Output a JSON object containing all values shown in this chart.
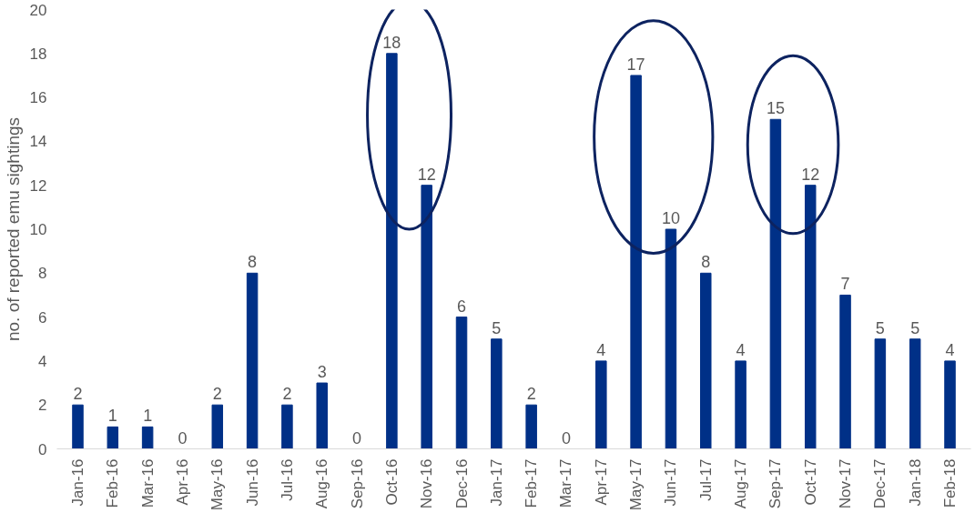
{
  "chart_data": {
    "type": "bar",
    "ylabel": "no. of reported emu sightings",
    "categories": [
      "Jan-16",
      "Feb-16",
      "Mar-16",
      "Apr-16",
      "May-16",
      "Jun-16",
      "Jul-16",
      "Aug-16",
      "Sep-16",
      "Oct-16",
      "Nov-16",
      "Dec-16",
      "Jan-17",
      "Feb-17",
      "Mar-17",
      "Apr-17",
      "May-17",
      "Jun-17",
      "Jul-17",
      "Aug-17",
      "Sep-17",
      "Oct-17",
      "Nov-17",
      "Dec-17",
      "Jan-18",
      "Feb-18"
    ],
    "values": [
      2,
      1,
      1,
      0,
      2,
      8,
      2,
      3,
      0,
      18,
      12,
      6,
      5,
      2,
      0,
      4,
      17,
      10,
      8,
      4,
      15,
      12,
      7,
      5,
      5,
      4
    ],
    "color": "#003087",
    "ylim": [
      0,
      20
    ],
    "yticks": [
      0,
      2,
      4,
      6,
      8,
      10,
      12,
      14,
      16,
      18,
      20
    ],
    "grid": false,
    "data_labels": true
  }
}
